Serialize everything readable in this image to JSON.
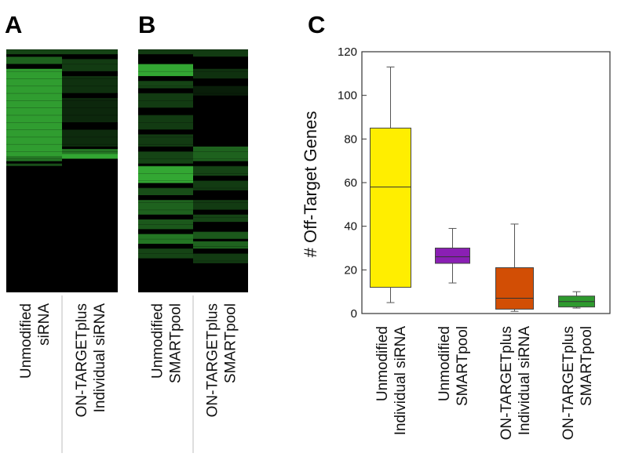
{
  "panels": {
    "a": {
      "letter": "A",
      "columns": [
        {
          "label_lines": [
            "Unmodified",
            "siRNA"
          ]
        },
        {
          "label_lines": [
            "ON-TARGETplus",
            "Individual siRNA"
          ]
        }
      ]
    },
    "b": {
      "letter": "B",
      "columns": [
        {
          "label_lines": [
            "Unmodified",
            "SMARTpool"
          ]
        },
        {
          "label_lines": [
            "ON-TARGETplus",
            "SMARTpool"
          ]
        }
      ]
    },
    "c": {
      "letter": "C"
    }
  },
  "heatmap_colors": {
    "background": "#000000",
    "signal": "#3cc43c"
  },
  "chart_data": [
    {
      "type": "heatmap",
      "panel": "A",
      "columns": [
        "Unmodified siRNA",
        "ON-TARGETplus Individual siRNA"
      ],
      "rows": 100,
      "bands": [
        {
          "column": 0,
          "from": 0,
          "to": 2,
          "intensity": 0.35
        },
        {
          "column": 0,
          "from": 3,
          "to": 6,
          "intensity": 0.5
        },
        {
          "column": 0,
          "from": 8,
          "to": 44,
          "intensity": 0.8
        },
        {
          "column": 0,
          "from": 44,
          "to": 46,
          "intensity": 0.6
        },
        {
          "column": 0,
          "from": 47,
          "to": 48,
          "intensity": 0.4
        },
        {
          "column": 1,
          "from": 0,
          "to": 2,
          "intensity": 0.35
        },
        {
          "column": 1,
          "from": 4,
          "to": 9,
          "intensity": 0.3
        },
        {
          "column": 1,
          "from": 11,
          "to": 18,
          "intensity": 0.25
        },
        {
          "column": 1,
          "from": 20,
          "to": 30,
          "intensity": 0.2
        },
        {
          "column": 1,
          "from": 33,
          "to": 40,
          "intensity": 0.22
        },
        {
          "column": 1,
          "from": 41,
          "to": 43,
          "intensity": 0.6
        },
        {
          "column": 1,
          "from": 43,
          "to": 45,
          "intensity": 0.85
        }
      ]
    },
    {
      "type": "heatmap",
      "panel": "B",
      "columns": [
        "Unmodified SMARTpool",
        "ON-TARGETplus SMARTpool"
      ],
      "rows": 100,
      "bands": [
        {
          "column": 0,
          "from": 0,
          "to": 2,
          "intensity": 0.3
        },
        {
          "column": 0,
          "from": 6,
          "to": 11,
          "intensity": 0.85
        },
        {
          "column": 0,
          "from": 13,
          "to": 16,
          "intensity": 0.35
        },
        {
          "column": 0,
          "from": 18,
          "to": 24,
          "intensity": 0.3
        },
        {
          "column": 0,
          "from": 27,
          "to": 33,
          "intensity": 0.3
        },
        {
          "column": 0,
          "from": 35,
          "to": 40,
          "intensity": 0.3
        },
        {
          "column": 0,
          "from": 42,
          "to": 47,
          "intensity": 0.35
        },
        {
          "column": 0,
          "from": 48,
          "to": 55,
          "intensity": 0.85
        },
        {
          "column": 0,
          "from": 57,
          "to": 60,
          "intensity": 0.4
        },
        {
          "column": 0,
          "from": 62,
          "to": 68,
          "intensity": 0.5
        },
        {
          "column": 0,
          "from": 70,
          "to": 74,
          "intensity": 0.45
        },
        {
          "column": 0,
          "from": 76,
          "to": 80,
          "intensity": 0.6
        },
        {
          "column": 0,
          "from": 82,
          "to": 86,
          "intensity": 0.35
        },
        {
          "column": 1,
          "from": 0,
          "to": 3,
          "intensity": 0.3
        },
        {
          "column": 1,
          "from": 8,
          "to": 12,
          "intensity": 0.25
        },
        {
          "column": 1,
          "from": 15,
          "to": 19,
          "intensity": 0.15
        },
        {
          "column": 1,
          "from": 40,
          "to": 46,
          "intensity": 0.5
        },
        {
          "column": 1,
          "from": 48,
          "to": 52,
          "intensity": 0.35
        },
        {
          "column": 1,
          "from": 54,
          "to": 58,
          "intensity": 0.3
        },
        {
          "column": 1,
          "from": 62,
          "to": 66,
          "intensity": 0.3
        },
        {
          "column": 1,
          "from": 68,
          "to": 71,
          "intensity": 0.35
        },
        {
          "column": 1,
          "from": 75,
          "to": 78,
          "intensity": 0.45
        },
        {
          "column": 1,
          "from": 79,
          "to": 82,
          "intensity": 0.5
        },
        {
          "column": 1,
          "from": 84,
          "to": 88,
          "intensity": 0.3
        }
      ]
    },
    {
      "type": "box",
      "panel": "C",
      "ylabel": "# Off-Target Genes",
      "ylim": [
        0,
        120
      ],
      "yticks": [
        0,
        20,
        40,
        60,
        80,
        100,
        120
      ],
      "grid": false,
      "categories": [
        {
          "label_lines": [
            "Unmodified",
            "Individual siRNA"
          ]
        },
        {
          "label_lines": [
            "Unmodified",
            "SMARTpool"
          ]
        },
        {
          "label_lines": [
            "ON-TARGETplus",
            "Individual siRNA"
          ]
        },
        {
          "label_lines": [
            "ON-TARGETplus",
            "SMARTpool"
          ]
        }
      ],
      "boxes": [
        {
          "min": 5,
          "q1": 12,
          "median": 58,
          "q3": 85,
          "max": 113,
          "color": "#ffee00"
        },
        {
          "min": 14,
          "q1": 23,
          "median": 26,
          "q3": 30,
          "max": 39,
          "color": "#8a1fb4"
        },
        {
          "min": 1,
          "q1": 2,
          "median": 7,
          "q3": 21,
          "max": 41,
          "color": "#d24e05"
        },
        {
          "min": 2.5,
          "q1": 3,
          "median": 5.5,
          "q3": 8,
          "max": 10,
          "color": "#2e9a2e"
        }
      ]
    }
  ]
}
